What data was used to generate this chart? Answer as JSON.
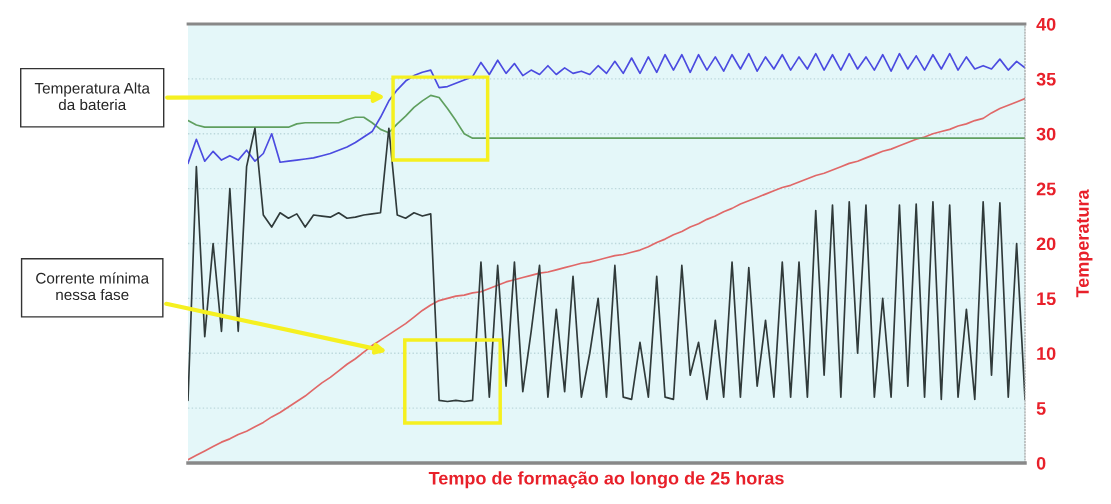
{
  "chart_data": {
    "type": "line",
    "xlabel": "Tempo de formação ao longo de 25 horas",
    "ylabel": "Temperatura",
    "ylim": [
      0,
      40
    ],
    "yticks": [
      0,
      5,
      10,
      15,
      20,
      25,
      30,
      35,
      40
    ],
    "tick_labels": "y",
    "grid": "y",
    "annotations": [
      "Temperatura Alta\nda bateria",
      "Corrente mínima\nnessa fase"
    ],
    "categories": [
      null,
      null,
      null,
      null,
      null,
      null,
      null,
      null,
      null,
      null,
      null,
      null,
      null,
      null,
      null,
      null,
      null,
      null,
      null,
      null,
      null,
      null,
      null,
      null,
      null,
      null,
      null,
      null,
      null,
      null,
      null,
      null,
      null,
      null,
      null,
      null,
      null,
      null,
      null,
      null,
      null,
      null,
      null,
      null,
      null,
      null,
      null,
      null,
      null,
      null,
      null,
      null,
      null,
      null,
      null,
      null,
      null,
      null,
      null,
      null,
      null,
      null,
      null,
      null,
      null,
      null,
      null,
      null,
      null,
      null,
      null,
      null,
      null,
      null,
      null,
      null,
      null,
      null,
      null,
      null,
      null,
      null,
      null,
      null,
      null,
      null,
      null,
      null,
      null,
      null,
      null,
      null,
      null,
      null,
      null,
      null,
      null,
      null,
      null,
      null,
      null
    ],
    "series": [
      {
        "color": "#e06868",
        "values": [
          0.3,
          0.7,
          1.1,
          1.5,
          1.9,
          2.2,
          2.6,
          2.9,
          3.3,
          3.7,
          4.2,
          4.6,
          5.1,
          5.6,
          6.1,
          6.7,
          7.3,
          7.8,
          8.4,
          9.0,
          9.5,
          10.1,
          10.7,
          11.2,
          11.7,
          12.2,
          12.7,
          13.3,
          13.9,
          14.4,
          14.8,
          15.0,
          15.2,
          15.3,
          15.5,
          15.6,
          15.9,
          16.2,
          16.5,
          16.7,
          16.9,
          17.1,
          17.3,
          17.4,
          17.6,
          17.8,
          18.0,
          18.2,
          18.3,
          18.5,
          18.7,
          18.9,
          19.0,
          19.2,
          19.4,
          19.7,
          20.1,
          20.4,
          20.8,
          21.1,
          21.5,
          21.8,
          22.2,
          22.5,
          22.9,
          23.2,
          23.6,
          23.9,
          24.2,
          24.5,
          24.8,
          25.1,
          25.3,
          25.6,
          25.9,
          26.2,
          26.4,
          26.7,
          27.0,
          27.3,
          27.5,
          27.8,
          28.1,
          28.4,
          28.6,
          28.9,
          29.2,
          29.5,
          29.7,
          30.0,
          30.2,
          30.4,
          30.7,
          30.9,
          31.2,
          31.4,
          31.9,
          32.3,
          32.6,
          32.9,
          33.2
        ]
      },
      {
        "color": "#5f9f5f",
        "values": [
          31.2,
          30.8,
          30.6,
          30.6,
          30.6,
          30.6,
          30.6,
          30.6,
          30.6,
          30.6,
          30.6,
          30.6,
          30.6,
          30.9,
          31,
          31,
          31,
          31,
          31,
          31.3,
          31.5,
          31.5,
          31.0,
          30.4,
          30.1,
          30.9,
          31.6,
          32.4,
          33.0,
          33.5,
          33.3,
          32.3,
          31.2,
          30.0,
          29.6,
          29.6,
          29.6,
          29.6,
          29.6,
          29.6,
          29.6,
          29.6,
          29.6,
          29.6,
          29.6,
          29.6,
          29.6,
          29.6,
          29.6,
          29.6,
          29.6,
          29.6,
          29.6,
          29.6,
          29.6,
          29.6,
          29.6,
          29.6,
          29.6,
          29.6,
          29.6,
          29.6,
          29.6,
          29.6,
          29.6,
          29.6,
          29.6,
          29.6,
          29.6,
          29.6,
          29.6,
          29.6,
          29.6,
          29.6,
          29.6,
          29.6,
          29.6,
          29.6,
          29.6,
          29.6,
          29.6,
          29.6,
          29.6,
          29.6,
          29.6,
          29.6,
          29.6,
          29.6,
          29.6,
          29.6,
          29.6,
          29.6,
          29.6,
          29.6,
          29.6,
          29.6,
          29.6,
          29.6,
          29.6,
          29.6,
          29.6
        ]
      },
      {
        "color": "#4b4be0",
        "values": [
          27.3,
          29.5,
          27.5,
          28.4,
          27.6,
          28.0,
          27.6,
          28.5,
          27.5,
          28.2,
          30.0,
          27.4,
          27.5,
          27.6,
          27.7,
          27.8,
          28.0,
          28.2,
          28.5,
          28.8,
          29.2,
          29.7,
          30.2,
          31.5,
          33.0,
          34.0,
          34.8,
          35.3,
          35.6,
          35.8,
          34.2,
          34.3,
          34.6,
          34.9,
          35.2,
          36.5,
          35.4,
          36.7,
          35.5,
          36.4,
          35.3,
          35.8,
          35.4,
          36.2,
          35.4,
          36.0,
          35.5,
          35.7,
          35.4,
          36.2,
          35.5,
          36.6,
          35.5,
          36.9,
          35.5,
          37.0,
          35.6,
          37.2,
          35.8,
          37.2,
          35.6,
          37.2,
          35.8,
          37.0,
          35.7,
          37.2,
          35.9,
          37.3,
          35.7,
          37.0,
          35.9,
          37.2,
          35.8,
          37.0,
          35.9,
          37.3,
          35.8,
          37.2,
          35.8,
          37.3,
          35.9,
          37.0,
          35.8,
          37.2,
          35.7,
          37.3,
          35.9,
          37.1,
          35.8,
          37.2,
          35.9,
          37.3,
          35.8,
          37.0,
          35.9,
          36.2,
          35.9,
          36.8,
          35.8,
          36.6,
          36.0
        ]
      },
      {
        "color": "#303a3a",
        "values": [
          5.7,
          27,
          11.5,
          20,
          12,
          25,
          12,
          27,
          30.5,
          22.6,
          21.5,
          22.8,
          22.3,
          22.7,
          21.5,
          22.6,
          22.5,
          22.4,
          22.8,
          22.3,
          22.4,
          22.6,
          22.7,
          22.8,
          30.5,
          22.6,
          22.3,
          22.8,
          22.5,
          22.7,
          5.7,
          5.6,
          5.7,
          5.6,
          5.7,
          18.3,
          6,
          18,
          7,
          18.3,
          6.5,
          12,
          18,
          6,
          14,
          6.5,
          17,
          6,
          10,
          15,
          6,
          18,
          6,
          5.8,
          11,
          6,
          17,
          6,
          5.8,
          18,
          8,
          11,
          5.8,
          13,
          6,
          18.3,
          6,
          17.8,
          7,
          13,
          6,
          18.3,
          6,
          18.3,
          6,
          23,
          8,
          23.5,
          6,
          23.8,
          10,
          23.5,
          6,
          15,
          6,
          23.5,
          7,
          23.6,
          6,
          23.8,
          5.8,
          23.5,
          6,
          14,
          5.8,
          23.8,
          8,
          23.7,
          6,
          20,
          5.8
        ]
      }
    ]
  }
}
